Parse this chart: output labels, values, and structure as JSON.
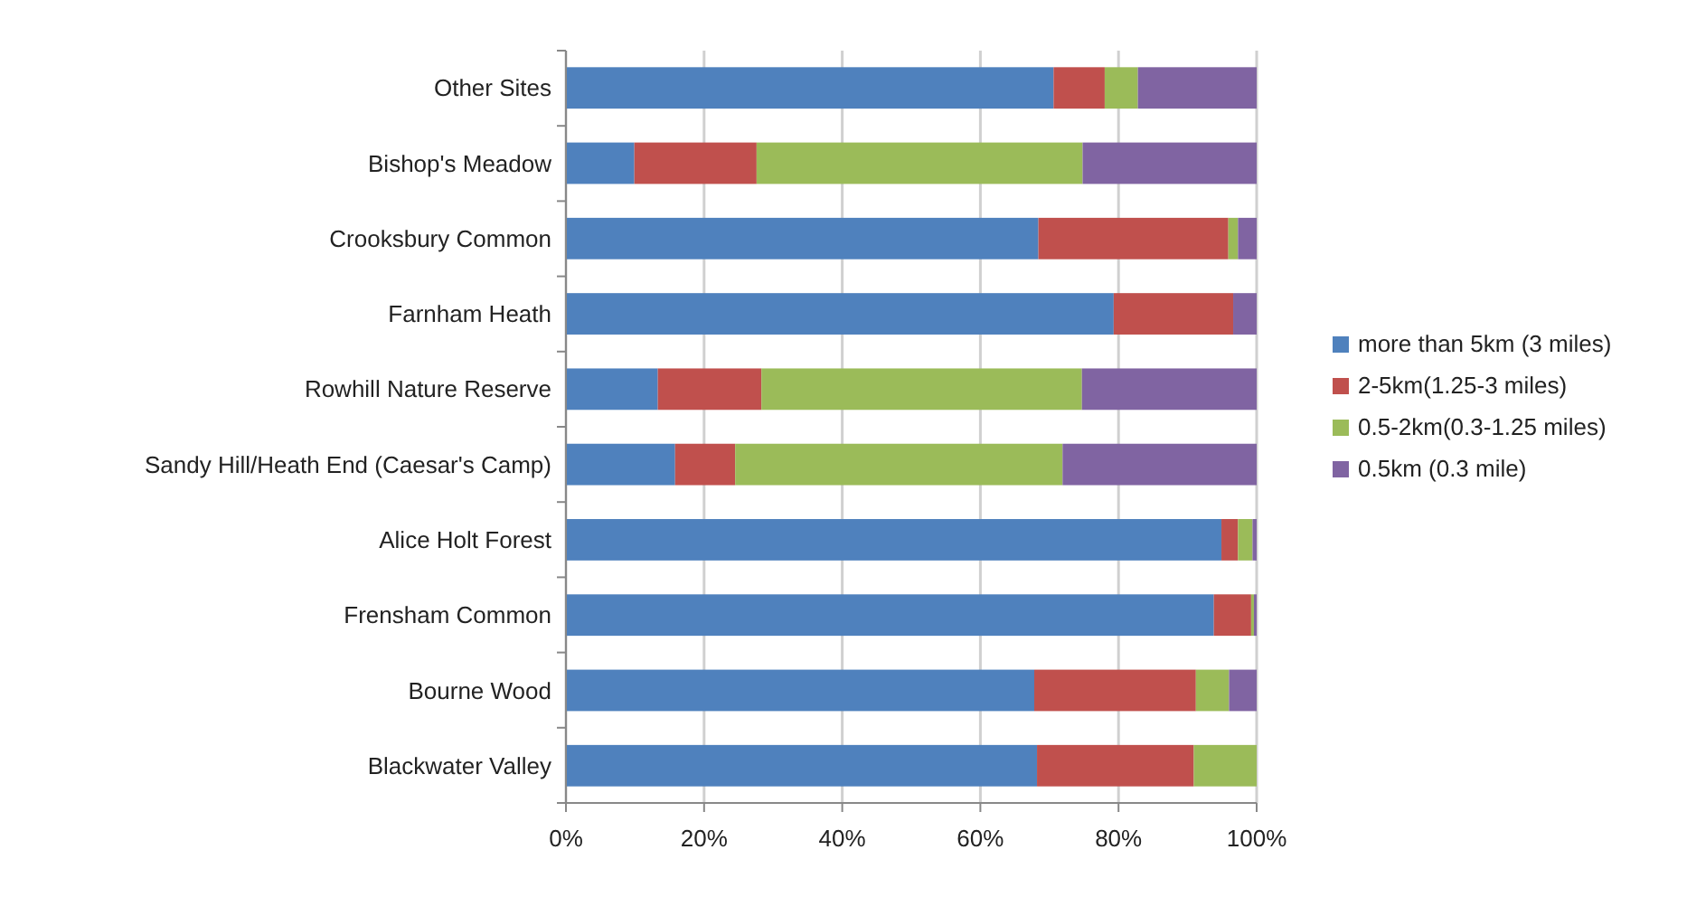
{
  "chart_data": {
    "type": "bar",
    "orientation": "horizontal",
    "stacked": true,
    "categories": [
      "Other Sites",
      "Bishop's Meadow",
      "Crooksbury Common",
      "Farnham Heath",
      "Rowhill Nature Reserve",
      "Sandy Hill/Heath End (Caesar's Camp)",
      "Alice Holt Forest",
      "Frensham Common",
      "Bourne Wood",
      "Blackwater Valley"
    ],
    "series": [
      {
        "name": "more than 5km (3 miles)",
        "color": "#4f81bd",
        "values": [
          70.6,
          9.9,
          68.4,
          79.3,
          13.3,
          15.8,
          94.9,
          93.8,
          67.8,
          68.2
        ]
      },
      {
        "name": "2-5km(1.25-3 miles)",
        "color": "#c0504d",
        "values": [
          7.4,
          17.7,
          27.5,
          17.3,
          15.0,
          8.7,
          2.4,
          5.4,
          23.4,
          22.7
        ]
      },
      {
        "name": "0.5-2km(0.3-1.25 miles)",
        "color": "#9bbb59",
        "values": [
          4.8,
          47.2,
          1.4,
          0,
          46.4,
          47.4,
          2.1,
          0.4,
          4.8,
          9.1
        ]
      },
      {
        "name": "0.5km (0.3 mile)",
        "color": "#8064a2",
        "values": [
          17.2,
          25.2,
          2.7,
          3.4,
          25.3,
          28.1,
          0.6,
          0.4,
          4.0,
          0
        ]
      }
    ],
    "xlim": [
      0,
      100
    ],
    "xticks": [
      {
        "value": 0,
        "label": "0%"
      },
      {
        "value": 20,
        "label": "20%"
      },
      {
        "value": 40,
        "label": "40%"
      },
      {
        "value": 60,
        "label": "60%"
      },
      {
        "value": 80,
        "label": "80%"
      },
      {
        "value": 100,
        "label": "100%"
      }
    ],
    "grid": "x",
    "legend": "right"
  }
}
